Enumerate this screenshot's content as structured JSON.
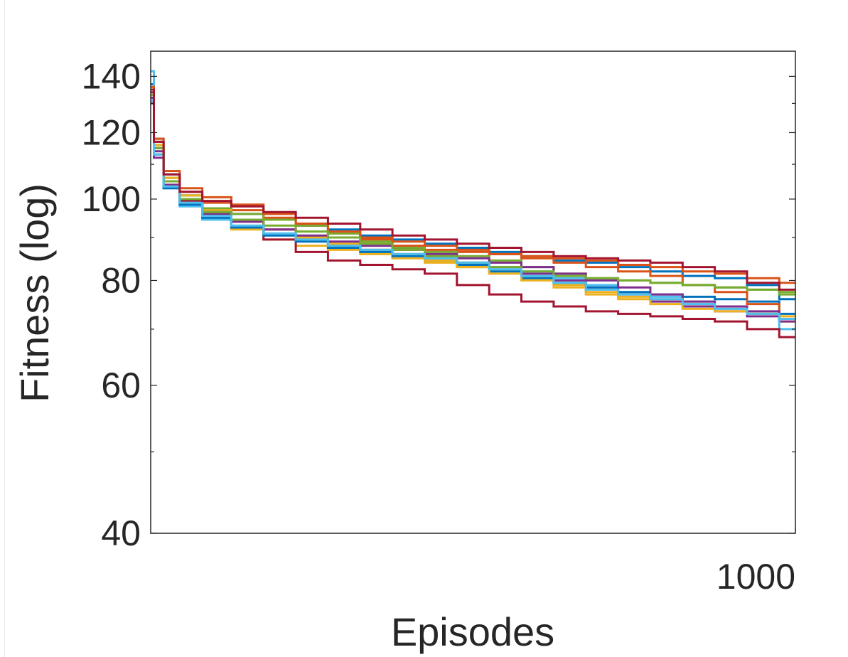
{
  "chart_data": {
    "type": "line",
    "title": "",
    "xlabel": "Episodes",
    "ylabel": "Fitness (log)",
    "xlim": [
      0,
      1000
    ],
    "ylim": [
      40,
      150
    ],
    "yscale": "log",
    "x_tick_labels": [
      "1000"
    ],
    "x_ticks": [
      1000
    ],
    "y_tick_labels": [
      "40",
      "60",
      "80",
      "100",
      "120",
      "140"
    ],
    "y_ticks": [
      40,
      60,
      80,
      100,
      120,
      140
    ],
    "y_minor_ticks": [
      50,
      70,
      90,
      110,
      130,
      150
    ],
    "grid": false,
    "legend": "none",
    "series": [
      {
        "color": "#0072BD",
        "x": [
          0,
          10,
          30,
          60,
          100,
          150,
          200,
          250,
          300,
          350,
          400,
          450,
          500,
          550,
          600,
          650,
          700,
          750,
          800,
          850,
          900,
          950,
          1000
        ],
        "values": [
          137,
          118,
          107,
          101,
          97.5,
          96,
          94.5,
          93,
          92,
          90.5,
          89.5,
          88.5,
          87.5,
          86.5,
          85.5,
          84.5,
          84,
          83,
          82,
          81,
          80.5,
          79,
          76
        ]
      },
      {
        "color": "#D95319",
        "x": [
          0,
          10,
          30,
          60,
          100,
          150,
          200,
          250,
          300,
          350,
          400,
          450,
          500,
          550,
          600,
          650,
          700,
          750,
          800,
          850,
          900,
          950,
          1000
        ],
        "values": [
          135,
          117,
          106,
          102,
          99,
          97,
          95,
          93,
          91,
          89.5,
          88,
          87,
          86.5,
          86,
          85.5,
          85,
          84.5,
          83.5,
          83,
          82,
          81.5,
          80.5,
          79.5
        ]
      },
      {
        "color": "#EDB120",
        "x": [
          0,
          10,
          30,
          60,
          100,
          150,
          200,
          250,
          300,
          350,
          400,
          450,
          500,
          550,
          600,
          650,
          700,
          750,
          800,
          850,
          900,
          950,
          1000
        ],
        "values": [
          132,
          113,
          104,
          99,
          95,
          92,
          89.5,
          88,
          87,
          86,
          85,
          84,
          83,
          82,
          80.5,
          79,
          77.5,
          76.5,
          76,
          75,
          74,
          73,
          71.5
        ]
      },
      {
        "color": "#7E2F8E",
        "x": [
          0,
          10,
          30,
          60,
          100,
          150,
          200,
          250,
          300,
          350,
          400,
          450,
          500,
          550,
          600,
          650,
          700,
          750,
          800,
          850,
          900,
          950,
          1000
        ],
        "values": [
          130,
          112,
          104,
          99,
          96,
          94,
          92,
          90,
          88.5,
          87,
          86,
          85,
          84,
          83,
          81.5,
          80,
          78.5,
          77,
          75.5,
          74.5,
          73.5,
          72.5,
          71.5
        ]
      },
      {
        "color": "#77AC30",
        "x": [
          0,
          10,
          30,
          60,
          100,
          150,
          200,
          250,
          300,
          350,
          400,
          450,
          500,
          550,
          600,
          650,
          700,
          750,
          800,
          850,
          900,
          950,
          1000
        ],
        "values": [
          134,
          116,
          106,
          101,
          97.5,
          96,
          94.5,
          93,
          91,
          89,
          87.5,
          86.5,
          85.5,
          84.5,
          83,
          81.5,
          80.5,
          80,
          79.5,
          79,
          78.5,
          78,
          77
        ]
      },
      {
        "color": "#4DBEEE",
        "x": [
          0,
          10,
          30,
          60,
          100,
          150,
          200,
          250,
          300,
          350,
          400,
          450,
          500,
          550,
          600,
          650,
          700,
          750,
          800,
          850,
          900,
          950,
          1000
        ],
        "values": [
          142,
          115,
          103,
          98,
          94.5,
          92.5,
          91,
          89.5,
          88,
          87,
          86,
          85,
          84,
          83,
          82,
          80.5,
          79,
          77.5,
          76.5,
          75.5,
          74.5,
          73,
          70
        ]
      },
      {
        "color": "#A2142F",
        "x": [
          0,
          10,
          30,
          60,
          100,
          150,
          200,
          250,
          300,
          350,
          400,
          450,
          500,
          550,
          600,
          650,
          700,
          750,
          800,
          850,
          900,
          950,
          1000
        ],
        "values": [
          134,
          115,
          105,
          99.5,
          95.5,
          92.5,
          89.5,
          86.5,
          84.5,
          83.5,
          82.5,
          81.5,
          79,
          77,
          75.5,
          74.5,
          73.5,
          73,
          72.5,
          72,
          71.5,
          70,
          68.5
        ]
      },
      {
        "color": "#0072BD",
        "x": [
          0,
          10,
          30,
          60,
          100,
          150,
          200,
          250,
          300,
          350,
          400,
          450,
          500,
          550,
          600,
          650,
          700,
          750,
          800,
          850,
          900,
          950,
          1000
        ],
        "values": [
          131,
          113,
          103,
          98.5,
          95,
          92.5,
          90.5,
          89,
          87.5,
          86.5,
          85.5,
          84.5,
          83.5,
          82,
          80.5,
          79.5,
          78.5,
          77.5,
          77,
          76.5,
          76,
          75.5,
          73
        ]
      },
      {
        "color": "#D95319",
        "x": [
          0,
          10,
          30,
          60,
          100,
          150,
          200,
          250,
          300,
          350,
          400,
          450,
          500,
          550,
          600,
          650,
          700,
          750,
          800,
          850,
          900,
          950,
          1000
        ],
        "values": [
          136,
          118,
          108,
          103,
          100.5,
          98.5,
          96,
          93.5,
          91.5,
          90,
          89,
          88,
          87,
          86,
          85,
          84,
          83,
          82,
          81,
          79,
          77.5,
          75,
          72
        ]
      },
      {
        "color": "#EDB120",
        "x": [
          0,
          10,
          30,
          60,
          100,
          150,
          200,
          250,
          300,
          350,
          400,
          450,
          500,
          550,
          600,
          650,
          700,
          750,
          800,
          850,
          900,
          950,
          1000
        ],
        "values": [
          133,
          116,
          106,
          101,
          97,
          94.5,
          92,
          90,
          88.5,
          87,
          86,
          84.5,
          83,
          81.5,
          80,
          78.5,
          77,
          76,
          75,
          74,
          73.5,
          73,
          72.5
        ]
      },
      {
        "color": "#7E2F8E",
        "x": [
          0,
          10,
          30,
          60,
          100,
          150,
          200,
          250,
          300,
          350,
          400,
          450,
          500,
          550,
          600,
          650,
          700,
          750,
          800,
          850,
          900,
          950,
          1000
        ],
        "values": [
          132,
          114,
          105,
          100,
          96.5,
          94,
          92,
          90.5,
          89,
          88,
          87,
          86,
          85,
          84,
          83,
          81.5,
          80,
          78.5,
          77,
          75.5,
          74.5,
          73.5,
          72
        ]
      },
      {
        "color": "#77AC30",
        "x": [
          0,
          10,
          30,
          60,
          100,
          150,
          200,
          250,
          300,
          350,
          400,
          450,
          500,
          550,
          600,
          650,
          700,
          750,
          800,
          850,
          900,
          950,
          1000
        ],
        "values": [
          133,
          115,
          105,
          100,
          96.5,
          94.5,
          93,
          91.5,
          90,
          88.5,
          87,
          85.5,
          84,
          83,
          82,
          81,
          80.5,
          80,
          79.5,
          79,
          78.5,
          78,
          77.5
        ]
      },
      {
        "color": "#4DBEEE",
        "x": [
          0,
          10,
          30,
          60,
          100,
          150,
          200,
          250,
          300,
          350,
          400,
          450,
          500,
          550,
          600,
          650,
          700,
          750,
          800,
          850,
          900,
          950,
          1000
        ],
        "values": [
          131,
          113,
          103.5,
          99,
          95.5,
          93,
          91,
          89.5,
          88,
          87,
          86,
          85,
          84,
          82.5,
          81,
          79.5,
          78,
          77,
          76,
          75,
          74,
          73,
          72
        ]
      },
      {
        "color": "#A2142F",
        "x": [
          0,
          10,
          30,
          60,
          100,
          150,
          200,
          250,
          300,
          350,
          400,
          450,
          500,
          550,
          600,
          650,
          700,
          750,
          800,
          850,
          900,
          950,
          1000
        ],
        "values": [
          135,
          117,
          107,
          102,
          99.5,
          98,
          96.5,
          95,
          93.5,
          92,
          90.5,
          89.5,
          88.5,
          87.5,
          86.5,
          85.5,
          85,
          84.5,
          84,
          83,
          82,
          79.5,
          78
        ]
      }
    ]
  }
}
